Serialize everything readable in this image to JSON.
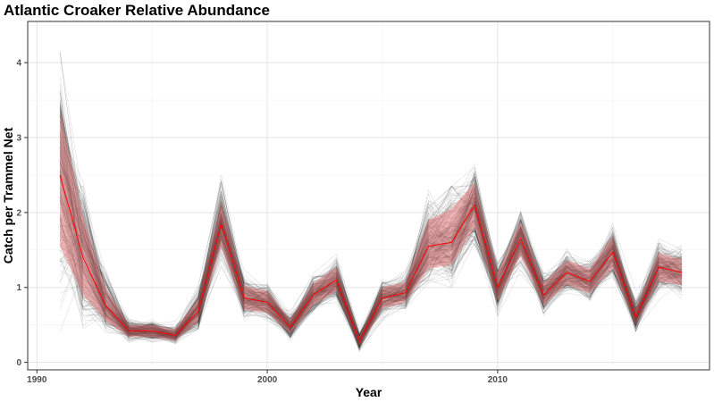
{
  "chart_data": {
    "type": "line",
    "title": "Atlantic Croaker Relative Abundance",
    "xlabel": "Year",
    "ylabel": "Catch per Trammel Net",
    "xlim": [
      1989.6,
      2019.2
    ],
    "ylim": [
      -0.1,
      4.55
    ],
    "x_ticks": [
      1990,
      2000,
      2010
    ],
    "y_ticks": [
      0,
      1,
      2,
      3,
      4
    ],
    "grid": true,
    "legend": "none",
    "x": [
      1991,
      1992,
      1993,
      1994,
      1995,
      1996,
      1997,
      1998,
      1999,
      2000,
      2001,
      2002,
      2003,
      2004,
      2005,
      2006,
      2007,
      2008,
      2009,
      2010,
      2011,
      2012,
      2013,
      2014,
      2015,
      2016,
      2017,
      2018
    ],
    "series": [
      {
        "role": "mean",
        "color": "#ff0000",
        "values": [
          2.5,
          1.4,
          0.75,
          0.42,
          0.42,
          0.36,
          0.68,
          1.85,
          0.86,
          0.8,
          0.47,
          0.9,
          1.1,
          0.28,
          0.86,
          0.93,
          1.55,
          1.6,
          2.1,
          1.0,
          1.65,
          0.9,
          1.2,
          1.08,
          1.47,
          0.6,
          1.27,
          1.2
        ]
      },
      {
        "role": "interval_lower",
        "color": "#f08080",
        "values": [
          1.55,
          0.9,
          0.55,
          0.34,
          0.34,
          0.29,
          0.54,
          1.55,
          0.7,
          0.66,
          0.38,
          0.76,
          0.95,
          0.21,
          0.72,
          0.8,
          1.25,
          1.3,
          1.8,
          0.82,
          1.42,
          0.76,
          1.04,
          0.92,
          1.26,
          0.5,
          1.08,
          1.03
        ]
      },
      {
        "role": "interval_upper",
        "color": "#f08080",
        "values": [
          3.35,
          1.95,
          0.98,
          0.5,
          0.5,
          0.44,
          0.84,
          2.15,
          1.02,
          0.95,
          0.57,
          1.05,
          1.27,
          0.35,
          1.0,
          1.07,
          1.9,
          2.05,
          2.4,
          1.2,
          1.88,
          1.06,
          1.36,
          1.25,
          1.68,
          0.72,
          1.46,
          1.38
        ]
      },
      {
        "role": "simulation_envelope_lower",
        "color": "#000000",
        "values": [
          0.3,
          0.42,
          0.32,
          0.22,
          0.24,
          0.2,
          0.36,
          1.0,
          0.5,
          0.5,
          0.22,
          0.55,
          0.75,
          0.15,
          0.55,
          0.62,
          0.9,
          1.0,
          1.4,
          0.55,
          1.0,
          0.55,
          0.75,
          0.7,
          0.9,
          0.3,
          0.75,
          0.7
        ]
      },
      {
        "role": "simulation_envelope_upper",
        "color": "#000000",
        "values": [
          4.3,
          2.5,
          1.25,
          0.62,
          0.62,
          0.56,
          1.05,
          2.65,
          1.25,
          1.2,
          0.7,
          1.3,
          1.5,
          0.45,
          1.2,
          1.3,
          2.3,
          2.35,
          2.65,
          1.5,
          2.35,
          1.35,
          1.95,
          1.6,
          2.1,
          0.95,
          1.7,
          1.65
        ]
      }
    ]
  }
}
